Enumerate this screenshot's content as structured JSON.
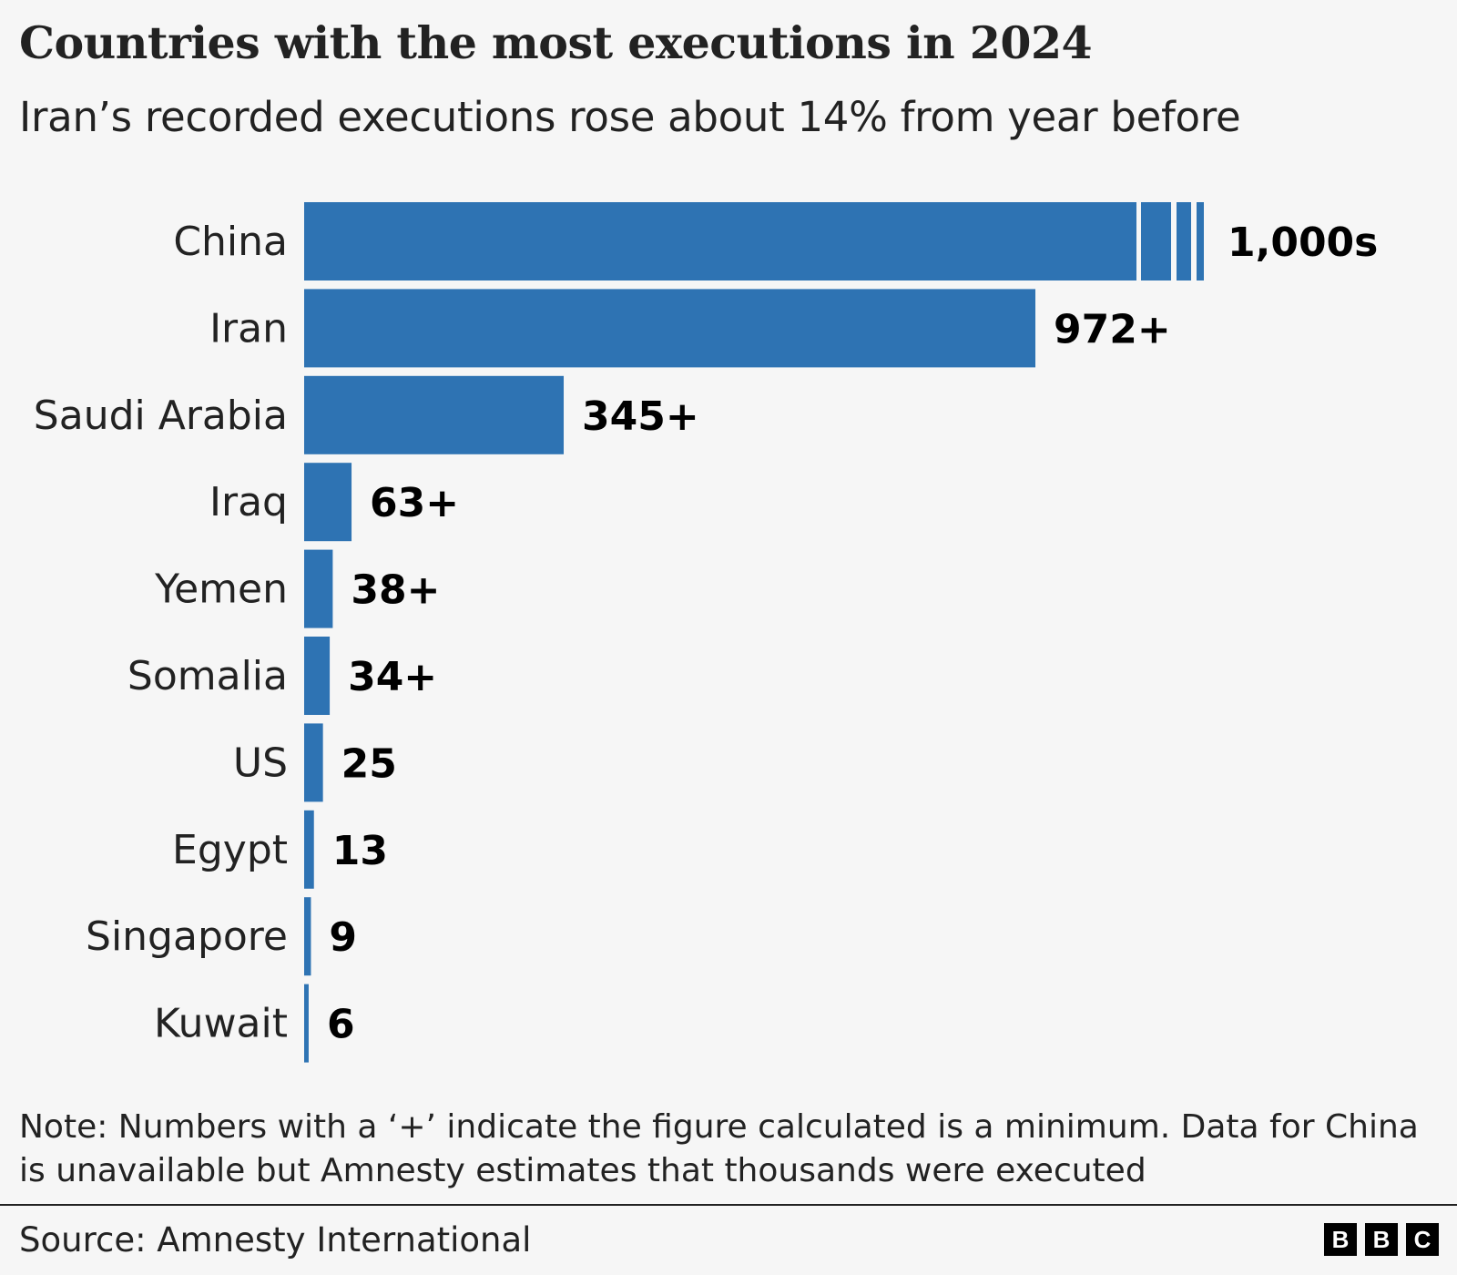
{
  "chart_data": {
    "type": "bar",
    "orientation": "horizontal",
    "title": "Countries with the most executions in 2024",
    "subtitle": "Iran’s recorded executions rose about 14% from year before",
    "categories": [
      "China",
      "Iran",
      "Saudi Arabia",
      "Iraq",
      "Yemen",
      "Somalia",
      "US",
      "Egypt",
      "Singapore",
      "Kuwait"
    ],
    "values": [
      1000,
      972,
      345,
      63,
      38,
      34,
      25,
      13,
      9,
      6
    ],
    "data_labels": [
      "1,000s",
      "972+",
      "345+",
      "63+",
      "38+",
      "34+",
      "25",
      "13",
      "9",
      "6"
    ],
    "broken_bar": "China",
    "bar_color": "#2e73b3",
    "grid": false,
    "legend": "none"
  },
  "note": "Note: Numbers with a ‘+’ indicate the figure calculated is a minimum. Data for China is unavailable but Amnesty estimates that thousands were executed",
  "source": "Source: Amnesty International",
  "logo": {
    "letters": [
      "B",
      "B",
      "C"
    ],
    "text": "BBC"
  }
}
